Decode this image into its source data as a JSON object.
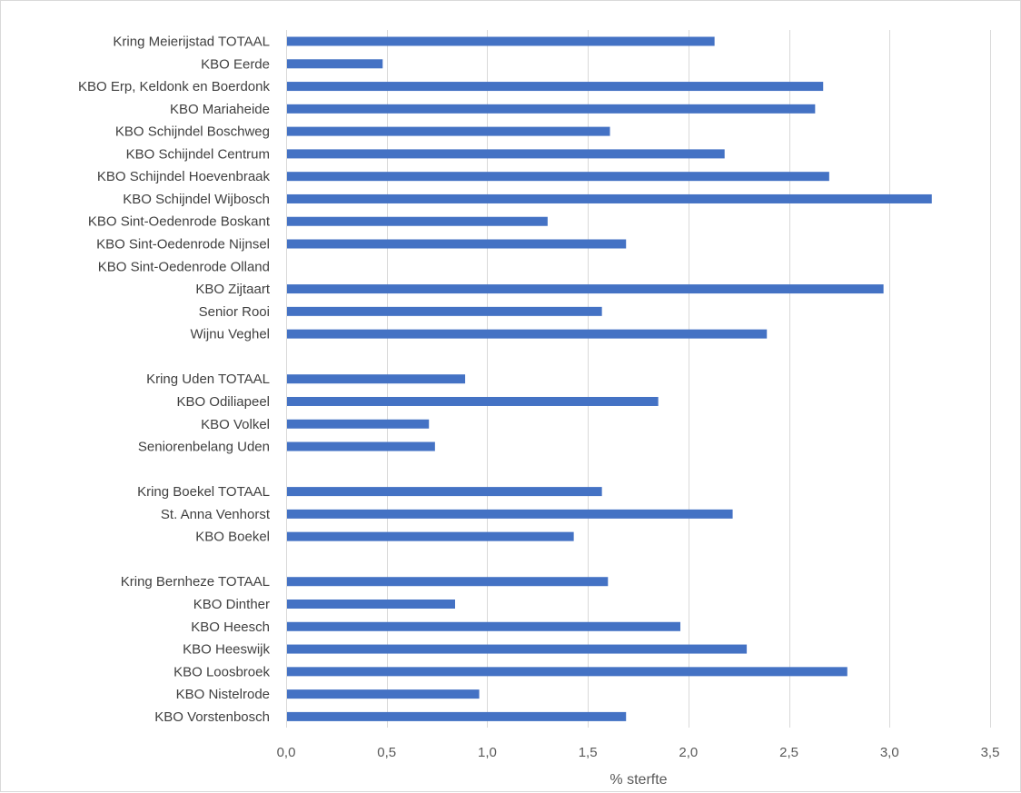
{
  "chart_data": {
    "type": "bar",
    "orientation": "horizontal",
    "xlabel": "% sterfte",
    "xlim": [
      0,
      3.5
    ],
    "xticks": [
      0,
      0.5,
      1,
      1.5,
      2,
      2.5,
      3,
      3.5
    ],
    "xtick_labels": [
      "0,0",
      "0,5",
      "1,0",
      "1,5",
      "2,0",
      "2,5",
      "3,0",
      "3,5"
    ],
    "grid": "vertical",
    "bar_color": "#4472c4",
    "categories": [
      "Kring Meierijstad TOTAAL",
      "KBO Eerde",
      "KBO Erp, Keldonk en Boerdonk",
      "KBO Mariaheide",
      "KBO Schijndel Boschweg",
      "KBO Schijndel Centrum",
      "KBO Schijndel Hoevenbraak",
      "KBO Schijndel Wijbosch",
      "KBO Sint-Oedenrode Boskant",
      "KBO Sint-Oedenrode Nijnsel",
      "KBO Sint-Oedenrode Olland",
      "KBO Zijtaart",
      "Senior Rooi",
      "Wijnu Veghel",
      "",
      "Kring Uden TOTAAL",
      "KBO Odiliapeel",
      "KBO Volkel",
      "Seniorenbelang Uden",
      "",
      "Kring Boekel TOTAAL",
      "St. Anna Venhorst",
      "KBO Boekel",
      "",
      "Kring Bernheze TOTAAL",
      "KBO Dinther",
      "KBO Heesch",
      "KBO Heeswijk",
      "KBO Loosbroek",
      "KBO Nistelrode",
      "KBO Vorstenbosch"
    ],
    "values": [
      2.13,
      0.48,
      2.67,
      2.63,
      1.61,
      2.18,
      2.7,
      3.21,
      1.3,
      1.69,
      0,
      2.97,
      1.57,
      2.39,
      null,
      0.89,
      1.85,
      0.71,
      0.74,
      null,
      1.57,
      2.22,
      1.43,
      null,
      1.6,
      0.84,
      1.96,
      2.29,
      2.79,
      0.96,
      1.69
    ]
  }
}
